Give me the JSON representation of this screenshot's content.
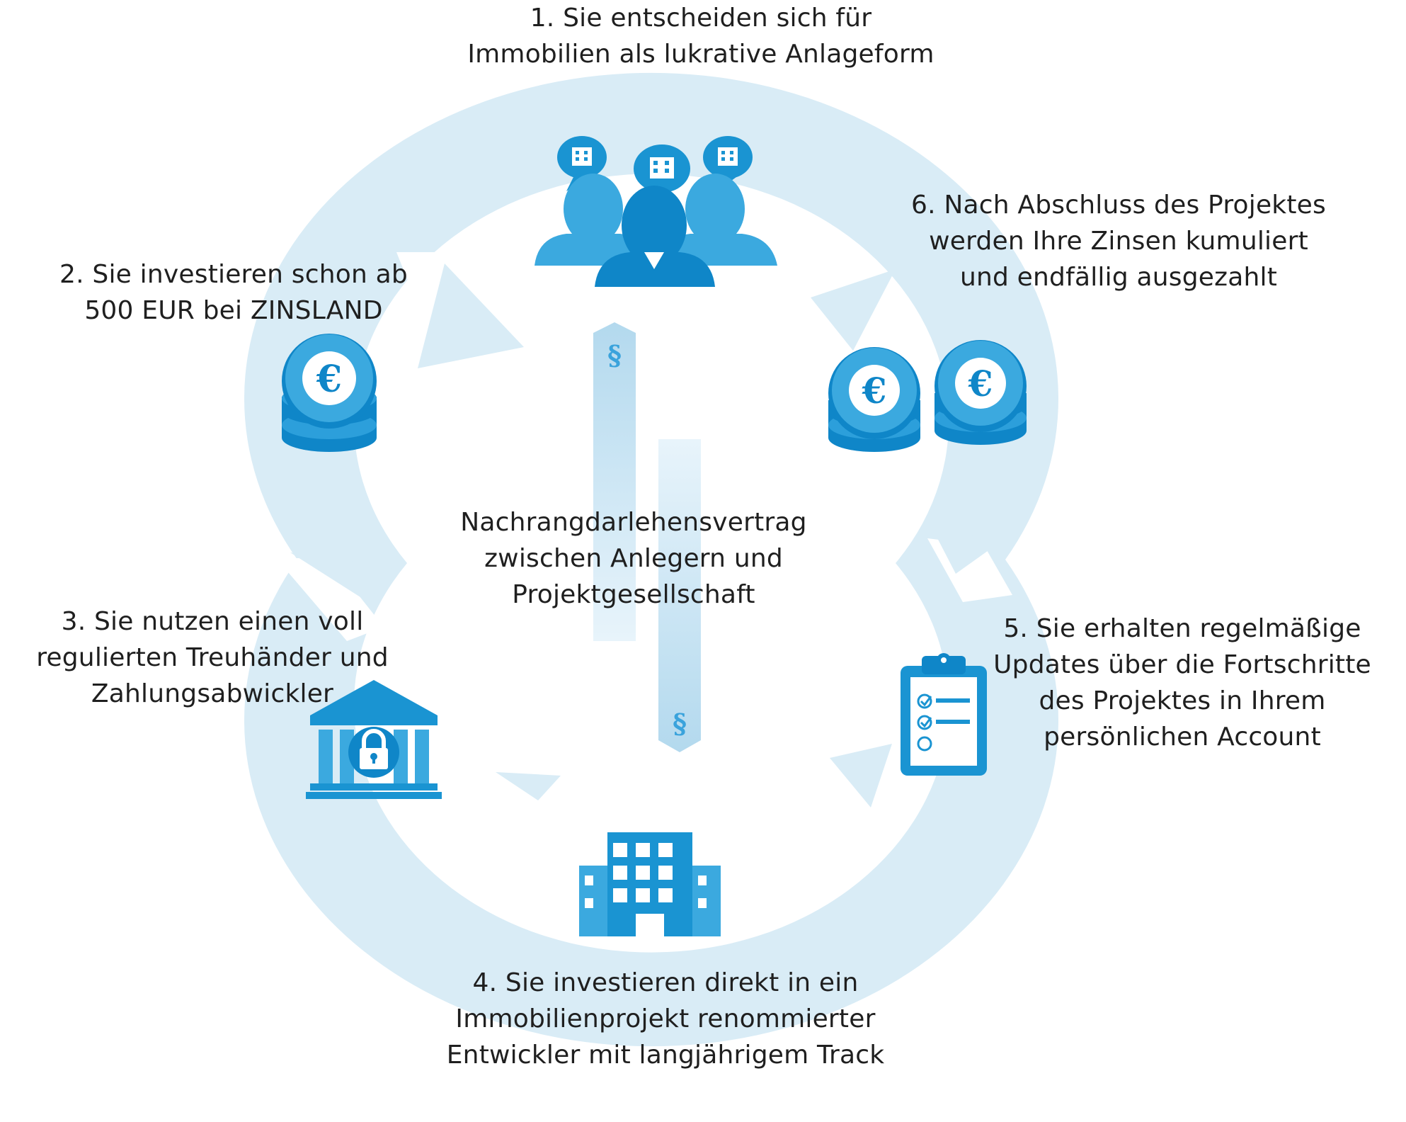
{
  "colors": {
    "ring": "#d9ecf6",
    "icon_light": "#49b3e6",
    "icon_dark": "#0f86c8",
    "arrow_fill": "#b7dcef",
    "arrow_text": "#3aa3dc"
  },
  "steps": [
    {
      "id": "step1",
      "icon": "investor-group-icon",
      "lines": [
        "1. Sie entscheiden sich für",
        "Immobilien als lukrative Anlageform"
      ]
    },
    {
      "id": "step2",
      "icon": "euro-coin-stack-icon",
      "lines": [
        "2. Sie investieren schon ab",
        "500 EUR bei ZINSLAND"
      ]
    },
    {
      "id": "step3",
      "icon": "bank-lock-icon",
      "lines": [
        "3. Sie nutzen einen voll",
        "regulierten Treuhänder und",
        "Zahlungsabwickler"
      ]
    },
    {
      "id": "step4",
      "icon": "office-building-icon",
      "lines": [
        "4. Sie investieren direkt in ein",
        "Immobilienprojekt renommierter",
        "Entwickler mit langjährigem Track"
      ]
    },
    {
      "id": "step5",
      "icon": "clipboard-checklist-icon",
      "lines": [
        "5. Sie erhalten regelmäßige",
        "Updates über die Fortschritte",
        "des Projektes in Ihrem",
        "persönlichen Account"
      ]
    },
    {
      "id": "step6",
      "icon": "euro-coin-stacks-icon",
      "lines": [
        "6. Nach Abschluss des Projektes",
        "werden Ihre Zinsen kumuliert",
        "und endfällig ausgezahlt"
      ]
    }
  ],
  "center": {
    "lines": [
      "Nachrangdarlehensvertrag",
      "zwischen Anlegern und",
      "Projektgesellschaft"
    ]
  },
  "contract_symbol": "§"
}
